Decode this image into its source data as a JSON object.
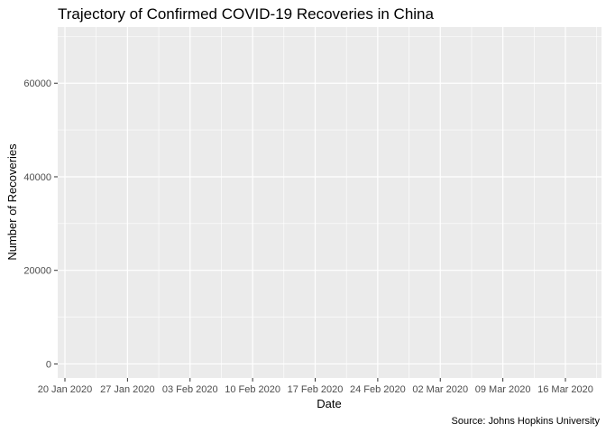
{
  "chart_data": {
    "type": "line",
    "title": "Trajectory of Confirmed COVID-19 Recoveries in China",
    "xlabel": "Date",
    "ylabel": "Number of Recoveries",
    "caption": "Source: Johns Hopkins University",
    "x_ticks": [
      "20 Jan 2020",
      "27 Jan 2020",
      "03 Feb 2020",
      "10 Feb 2020",
      "17 Feb 2020",
      "24 Feb 2020",
      "02 Mar 2020",
      "09 Mar 2020",
      "16 Mar 2020"
    ],
    "y_ticks": [
      0,
      20000,
      40000,
      60000
    ],
    "ylim": [
      -3000,
      72000
    ],
    "xlim": [
      "2020-01-20",
      "2020-03-23"
    ],
    "grid": true,
    "series": []
  }
}
